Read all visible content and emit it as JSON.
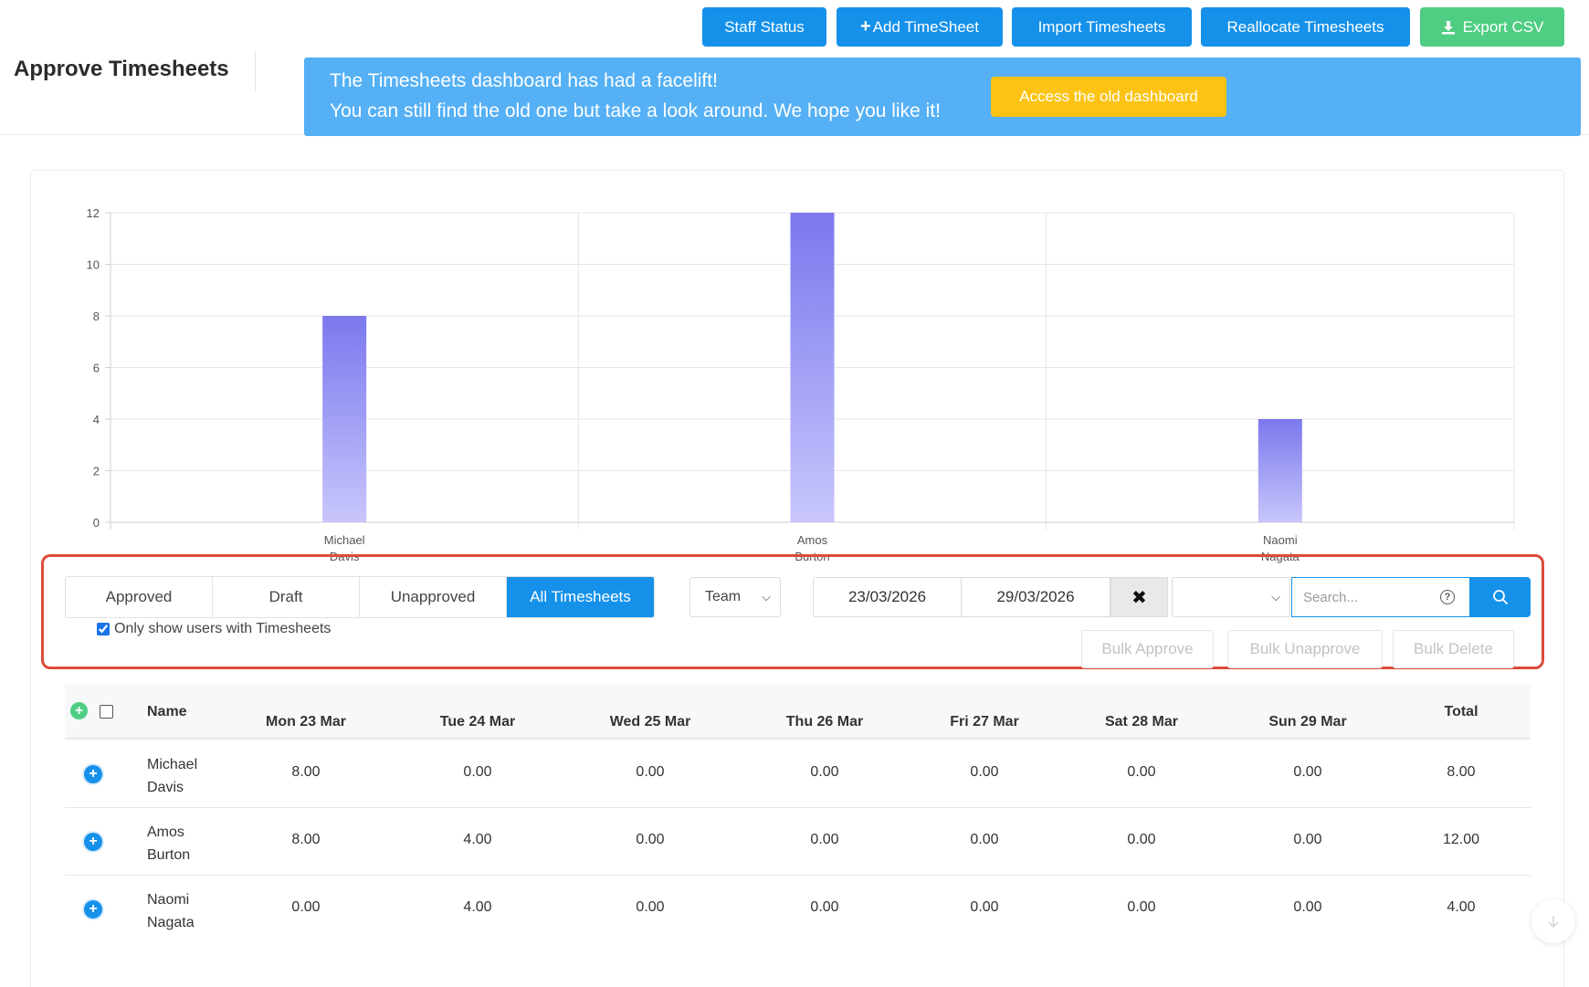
{
  "page": {
    "title": "Approve Timesheets"
  },
  "toolbar": {
    "staff_status": "Staff Status",
    "add_timesheet": "Add TimeSheet",
    "import_timesheets": "Import Timesheets",
    "reallocate_timesheets": "Reallocate Timesheets",
    "export_csv": "Export CSV"
  },
  "banner": {
    "line1": "The Timesheets dashboard has had a facelift!",
    "line2": "You can still find the old one but take a look around. We hope you like it!",
    "button": "Access the old dashboard"
  },
  "chart_data": {
    "type": "bar",
    "categories": [
      "Michael Davis",
      "Amos Burton",
      "Naomi Nagata"
    ],
    "category_lines": [
      [
        "Michael",
        "Davis"
      ],
      [
        "Amos",
        "Burton"
      ],
      [
        "Naomi",
        "Nagata"
      ]
    ],
    "values": [
      8,
      12,
      4
    ],
    "ylim": [
      0,
      12
    ],
    "yticks": [
      0,
      2,
      4,
      6,
      8,
      10,
      12
    ],
    "title": "",
    "xlabel": "",
    "ylabel": "",
    "grid": true,
    "colors": {
      "bar_top": "#7b78ee",
      "bar_bottom": "#c8c6fb",
      "grid": "#e6e6e6"
    }
  },
  "filters": {
    "status_tabs": [
      "Approved",
      "Draft",
      "Unapproved",
      "All Timesheets"
    ],
    "active_tab": "All Timesheets",
    "team_select": "Team",
    "date_from": "23/03/2026",
    "date_to": "29/03/2026",
    "search_placeholder": "Search...",
    "only_show_users": "Only show users with Timesheets",
    "bulk_approve": "Bulk Approve",
    "bulk_unapprove": "Bulk Unapprove",
    "bulk_delete": "Bulk Delete"
  },
  "table": {
    "headers": {
      "name": "Name",
      "days": [
        "Mon 23 Mar",
        "Tue 24 Mar",
        "Wed 25 Mar",
        "Thu 26 Mar",
        "Fri 27 Mar",
        "Sat 28 Mar",
        "Sun 29 Mar"
      ],
      "total": "Total"
    },
    "rows": [
      {
        "first": "Michael",
        "last": "Davis",
        "days": [
          "8.00",
          "0.00",
          "0.00",
          "0.00",
          "0.00",
          "0.00",
          "0.00"
        ],
        "total": "8.00"
      },
      {
        "first": "Amos",
        "last": "Burton",
        "days": [
          "8.00",
          "4.00",
          "0.00",
          "0.00",
          "0.00",
          "0.00",
          "0.00"
        ],
        "total": "12.00"
      },
      {
        "first": "Naomi",
        "last": "Nagata",
        "days": [
          "0.00",
          "4.00",
          "0.00",
          "0.00",
          "0.00",
          "0.00",
          "0.00"
        ],
        "total": "4.00"
      }
    ]
  },
  "colors": {
    "primary": "#1591ea",
    "success": "#4fcd82",
    "banner": "#55b0f5",
    "warning": "#fcc314",
    "highlight": "#dd4b3a"
  }
}
